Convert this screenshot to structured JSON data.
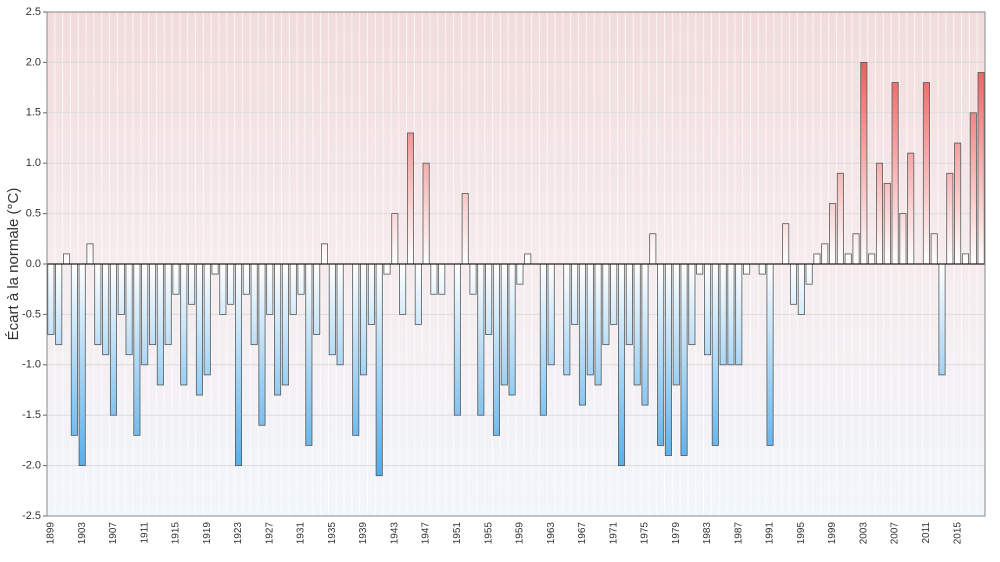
{
  "chart_data": {
    "type": "bar",
    "y_label": "Écart à la normale (°C)",
    "categories": [
      "1899",
      null,
      null,
      null,
      "1903",
      null,
      null,
      null,
      "1907",
      null,
      null,
      null,
      "1911",
      null,
      null,
      null,
      "1915",
      null,
      null,
      null,
      "1919",
      null,
      null,
      null,
      "1923",
      null,
      null,
      null,
      "1927",
      null,
      null,
      null,
      "1931",
      null,
      null,
      null,
      "1935",
      null,
      null,
      null,
      "1939",
      null,
      null,
      null,
      "1943",
      null,
      null,
      null,
      "1947",
      null,
      null,
      null,
      "1951",
      null,
      null,
      null,
      "1955",
      null,
      null,
      null,
      "1959",
      null,
      null,
      null,
      "1963",
      null,
      null,
      null,
      "1967",
      null,
      null,
      null,
      "1971",
      null,
      null,
      null,
      "1975",
      null,
      null,
      null,
      "1979",
      null,
      null,
      null,
      "1983",
      null,
      null,
      null,
      "1987",
      null,
      null,
      null,
      "1991",
      null,
      null,
      null,
      "1995",
      null,
      null,
      null,
      "1999",
      null,
      null,
      null,
      "2003",
      null,
      null,
      null,
      "2007",
      null,
      null,
      null,
      "2011",
      null,
      null,
      null,
      "2015",
      null,
      null,
      null
    ],
    "values": [
      -0.7,
      -0.8,
      0.1,
      -1.7,
      -2.0,
      0.2,
      -0.8,
      -0.9,
      -1.5,
      -0.5,
      -0.9,
      -1.7,
      -1.0,
      -0.8,
      -1.2,
      -0.8,
      -0.3,
      -1.2,
      -0.4,
      -1.3,
      -1.1,
      -0.1,
      -0.5,
      -0.4,
      -2.0,
      -0.3,
      -0.8,
      -1.6,
      -0.5,
      -1.3,
      -1.2,
      -0.5,
      -0.3,
      -1.8,
      -0.7,
      0.2,
      -0.9,
      -1.0,
      0,
      -1.7,
      -1.1,
      -0.6,
      -2.1,
      -0.1,
      0.5,
      -0.5,
      1.3,
      -0.6,
      1.0,
      -0.3,
      -0.3,
      0,
      -1.5,
      0.7,
      -0.3,
      -1.5,
      -0.7,
      -1.7,
      -1.2,
      -1.3,
      -0.2,
      0.1,
      0,
      -1.5,
      -1.0,
      0,
      -1.1,
      -0.6,
      -1.4,
      -1.1,
      -1.2,
      -0.8,
      -0.6,
      -2.0,
      -0.8,
      -1.2,
      -1.4,
      0.3,
      -1.8,
      -1.9,
      -1.2,
      -1.9,
      -0.8,
      -0.1,
      -0.9,
      -1.8,
      -1.0,
      -1.0,
      -1.0,
      -0.1,
      0,
      -0.1,
      -1.8,
      0,
      0.4,
      -0.4,
      -0.5,
      -0.2,
      0.1,
      0.2,
      0.6,
      0.9,
      0.1,
      0.3,
      2.0,
      0.1,
      1.0,
      0.8,
      1.8,
      0.5,
      1.1,
      0,
      1.8,
      0.3,
      -1.1,
      0.9,
      1.2,
      0.1,
      1.5,
      1.9
    ],
    "positive_color": "#e53935",
    "negative_color": "#2f9be6",
    "ylim": [
      -2.5,
      2.5
    ],
    "yticks": [
      -2.5,
      {
        "value": -2,
        "label": "-2.0"
      },
      -1.5,
      {
        "value": -1,
        "label": "-1.0"
      },
      -0.5,
      {
        "value": 0,
        "label": "0.0"
      },
      0.5,
      {
        "value": 1,
        "label": "1.0"
      },
      1.5,
      {
        "value": 2,
        "label": "2.0"
      },
      2.5
    ],
    "grid": true
  }
}
